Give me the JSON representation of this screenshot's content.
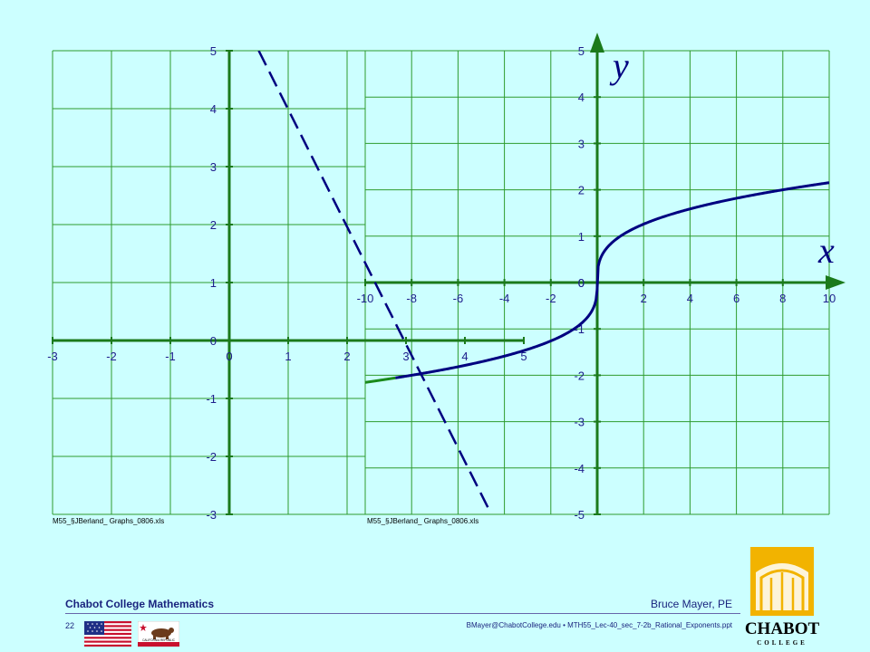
{
  "footer": {
    "left_title": "Chabot College Mathematics",
    "right_author": "Bruce Mayer, PE",
    "page_number": "22",
    "file_info": "BMayer@ChabotCollege.edu • MTH55_Lec-40_sec_7-2b_Rational_Exponents.ppt"
  },
  "logo": {
    "name": "CHABOT",
    "sub": "COLLEGE",
    "color": "#f2b300"
  },
  "flags": {
    "usa_icon": "us-flag-icon",
    "california_icon": "california-flag-icon",
    "california_text": "CALIFORNIA REPUBLIC"
  },
  "chart_data": [
    {
      "type": "line",
      "source_label": "M55_§JBerland_ Graphs_0806.xls",
      "xlim": [
        -3,
        5
      ],
      "ylim": [
        -3,
        5
      ],
      "x_ticks": [
        -3,
        -2,
        -1,
        0,
        1,
        2,
        3,
        4,
        5
      ],
      "y_ticks": [
        -3,
        -2,
        -1,
        0,
        1,
        2,
        3,
        4,
        5
      ],
      "grid": true,
      "series": [
        {
          "style": "dashed",
          "color": "#000080",
          "points": [
            [
              0.5,
              5
            ],
            [
              4.4,
              -2.9
            ]
          ]
        }
      ]
    },
    {
      "type": "line",
      "source_label": "M55_§JBerland_ Graphs_0806.xls",
      "xlabel": "x",
      "ylabel": "y",
      "xlim": [
        -10,
        10
      ],
      "ylim": [
        -5,
        5
      ],
      "x_ticks": [
        -10,
        -8,
        -6,
        -4,
        -2,
        0,
        2,
        4,
        6,
        8,
        10
      ],
      "y_ticks": [
        -5,
        -4,
        -3,
        -2,
        -1,
        0,
        1,
        2,
        3,
        4,
        5
      ],
      "grid": true,
      "series": [
        {
          "style": "solid",
          "color": "#000080",
          "function": "cbrt",
          "domain": [
            -8.7,
            10
          ]
        },
        {
          "style": "solid",
          "color": "#1b8a1b",
          "function": "cbrt",
          "domain": [
            -10,
            -8.7
          ]
        }
      ]
    }
  ]
}
